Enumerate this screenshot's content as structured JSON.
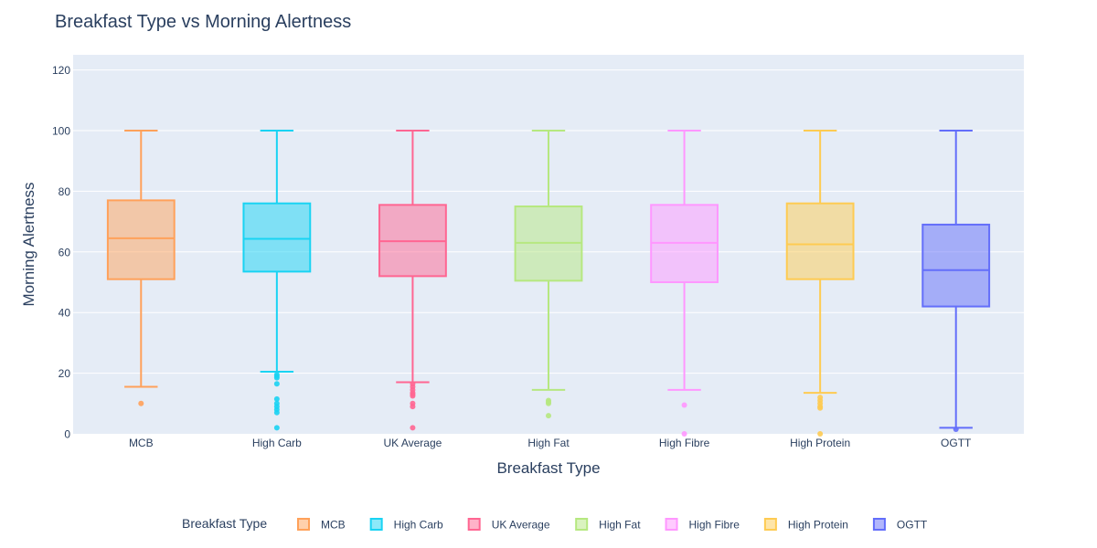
{
  "chart_data": {
    "type": "box",
    "title": "Breakfast Type vs Morning Alertness",
    "xlabel": "Breakfast Type",
    "ylabel": "Morning Alertness",
    "ylim": [
      0,
      125
    ],
    "yticks": [
      0,
      20,
      40,
      60,
      80,
      100,
      120
    ],
    "grid": true,
    "legend": {
      "title": "Breakfast Type",
      "placement": "bottom-center"
    },
    "categories": [
      "MCB",
      "High Carb",
      "UK Average",
      "High Fat",
      "High Fibre",
      "High Protein",
      "OGTT"
    ],
    "series": [
      {
        "name": "MCB",
        "color": "#FFA15A",
        "q1": 51,
        "median": 64.5,
        "q3": 77,
        "whisker_low": 15.5,
        "whisker_high": 100,
        "outliers": [
          10
        ]
      },
      {
        "name": "High Carb",
        "color": "#19D3F3",
        "q1": 53.5,
        "median": 64.3,
        "q3": 76,
        "whisker_low": 20.5,
        "whisker_high": 100,
        "outliers": [
          19.5,
          19,
          18.5,
          16.5,
          11.5,
          10,
          9,
          8,
          7,
          2
        ]
      },
      {
        "name": "UK Average",
        "color": "#FF6692",
        "q1": 52,
        "median": 63.5,
        "q3": 75.5,
        "whisker_low": 17,
        "whisker_high": 100,
        "outliers": [
          16.5,
          15.5,
          14.5,
          13.5,
          13,
          12.5,
          10,
          9,
          2
        ]
      },
      {
        "name": "High Fat",
        "color": "#B6E880",
        "q1": 50.5,
        "median": 63,
        "q3": 75,
        "whisker_low": 14.5,
        "whisker_high": 100,
        "outliers": [
          11,
          10.5,
          10,
          6
        ]
      },
      {
        "name": "High Fibre",
        "color": "#FF97FF",
        "q1": 50,
        "median": 63,
        "q3": 75.5,
        "whisker_low": 14.5,
        "whisker_high": 100,
        "outliers": [
          9.5,
          0
        ]
      },
      {
        "name": "High Protein",
        "color": "#FECB52",
        "q1": 51,
        "median": 62.5,
        "q3": 76,
        "whisker_low": 13.5,
        "whisker_high": 100,
        "outliers": [
          12,
          11,
          10,
          9,
          8.5,
          0
        ]
      },
      {
        "name": "OGTT",
        "color": "#636EFA",
        "q1": 42,
        "median": 54,
        "q3": 69,
        "whisker_low": 2,
        "whisker_high": 100,
        "outliers": [
          1.5
        ]
      }
    ]
  }
}
